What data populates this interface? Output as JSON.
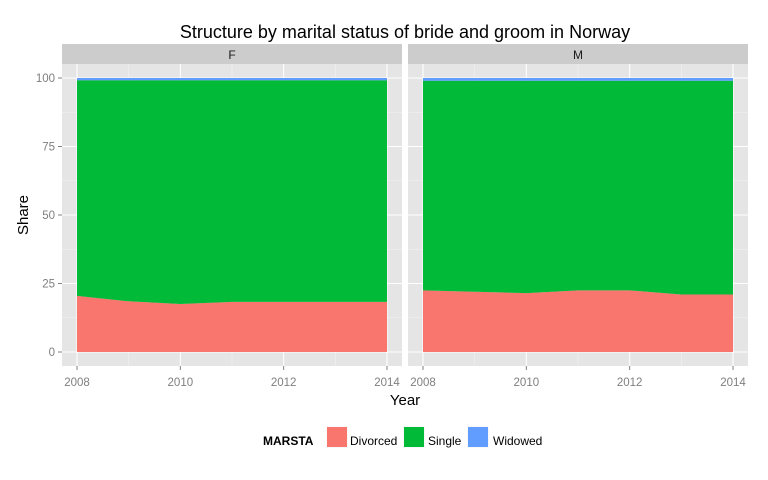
{
  "chart_data": {
    "type": "area",
    "title": "Structure by marital status of bride and groom in Norway",
    "xlabel": "Year",
    "ylabel": "Share",
    "xlim": [
      2008,
      2014
    ],
    "ylim": [
      0,
      100
    ],
    "x_ticks": [
      "2008",
      "2010",
      "2012",
      "2014"
    ],
    "y_ticks": [
      "0",
      "25",
      "50",
      "75",
      "100"
    ],
    "x": [
      2008,
      2009,
      2010,
      2011,
      2012,
      2013,
      2014
    ],
    "stacked": true,
    "grid": true,
    "legend": {
      "title": "MARSTA",
      "position": "bottom",
      "entries": [
        "Divorced",
        "Single",
        "Widowed"
      ]
    },
    "colors": {
      "Divorced": "#F8766D",
      "Single": "#00BA38",
      "Widowed": "#619CFF"
    },
    "panels": [
      {
        "label": "F",
        "series": [
          {
            "name": "Divorced",
            "values": [
              20.5,
              18.5,
              17.5,
              18.3,
              18.3,
              18.3,
              18.3
            ]
          },
          {
            "name": "Single",
            "values": [
              78.7,
              80.7,
              81.7,
              80.9,
              80.9,
              80.9,
              80.9
            ]
          },
          {
            "name": "Widowed",
            "values": [
              0.8,
              0.8,
              0.8,
              0.8,
              0.8,
              0.8,
              0.8
            ]
          }
        ]
      },
      {
        "label": "M",
        "series": [
          {
            "name": "Divorced",
            "values": [
              22.5,
              22.0,
              21.5,
              22.5,
              22.5,
              21.0,
              21.0
            ]
          },
          {
            "name": "Single",
            "values": [
              76.5,
              77.0,
              77.5,
              76.5,
              76.5,
              78.0,
              78.0
            ]
          },
          {
            "name": "Widowed",
            "values": [
              1.0,
              1.0,
              1.0,
              1.0,
              1.0,
              1.0,
              1.0
            ]
          }
        ]
      }
    ]
  }
}
